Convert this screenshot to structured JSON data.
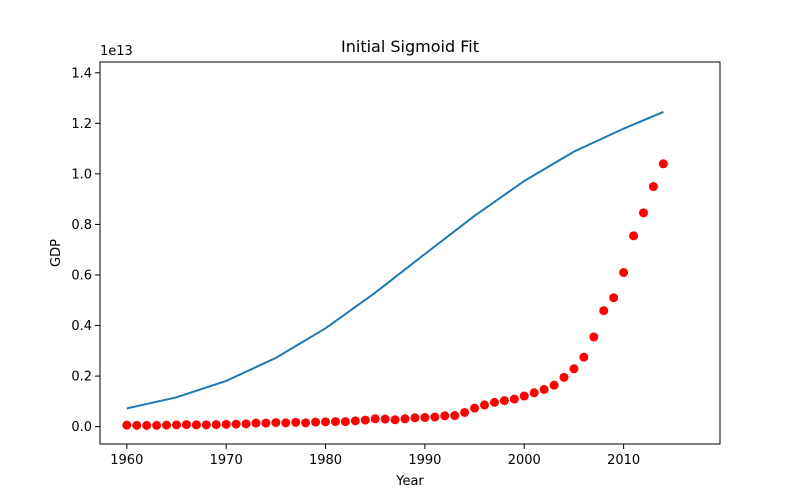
{
  "chart_data": {
    "type": "scatter",
    "title": "Initial Sigmoid Fit",
    "xlabel": "Year",
    "ylabel": "GDP",
    "y_offset_text": "1e13",
    "xlim": [
      1957.3,
      2019.7
    ],
    "ylim": [
      -0.0687,
      1.4427
    ],
    "y_scale_exponent": 13,
    "xticks": [
      1960,
      1970,
      1980,
      1990,
      2000,
      2010
    ],
    "yticks": [
      0.0,
      0.2,
      0.4,
      0.6,
      0.8,
      1.0,
      1.2,
      1.4
    ],
    "ytick_labels": [
      "0.0",
      "0.2",
      "0.4",
      "0.6",
      "0.8",
      "1.0",
      "1.2",
      "1.4"
    ],
    "grid": false,
    "colors": {
      "points": "#ff0000",
      "fit": "#1f77b4"
    },
    "series": [
      {
        "kind": "scatter",
        "x": [
          1960,
          1961,
          1962,
          1963,
          1964,
          1965,
          1966,
          1967,
          1968,
          1969,
          1970,
          1971,
          1972,
          1973,
          1974,
          1975,
          1976,
          1977,
          1978,
          1979,
          1980,
          1981,
          1982,
          1983,
          1984,
          1985,
          1986,
          1987,
          1988,
          1989,
          1990,
          1991,
          1992,
          1993,
          1994,
          1995,
          1996,
          1997,
          1998,
          1999,
          2000,
          2001,
          2002,
          2003,
          2004,
          2005,
          2006,
          2007,
          2008,
          2009,
          2010,
          2011,
          2012,
          2013,
          2014
        ],
        "y": [
          0.006,
          0.005,
          0.005,
          0.005,
          0.006,
          0.007,
          0.008,
          0.007,
          0.007,
          0.008,
          0.009,
          0.01,
          0.011,
          0.014,
          0.014,
          0.016,
          0.015,
          0.017,
          0.015,
          0.018,
          0.019,
          0.02,
          0.02,
          0.023,
          0.026,
          0.031,
          0.03,
          0.027,
          0.031,
          0.035,
          0.036,
          0.038,
          0.043,
          0.044,
          0.056,
          0.073,
          0.086,
          0.096,
          0.103,
          0.109,
          0.121,
          0.134,
          0.147,
          0.164,
          0.195,
          0.229,
          0.275,
          0.355,
          0.459,
          0.51,
          0.61,
          0.755,
          0.846,
          0.95,
          1.04
        ]
      },
      {
        "kind": "line",
        "x": [
          1960,
          1965,
          1970,
          1975,
          1980,
          1985,
          1990,
          1995,
          2000,
          2005,
          2010,
          2014
        ],
        "y": [
          0.072,
          0.116,
          0.181,
          0.272,
          0.389,
          0.53,
          0.683,
          0.834,
          0.972,
          1.088,
          1.179,
          1.245
        ]
      }
    ]
  }
}
